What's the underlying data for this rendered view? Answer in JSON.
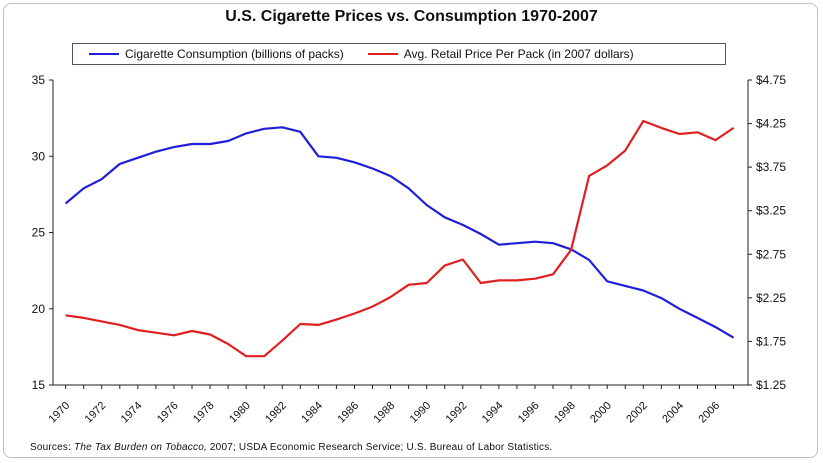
{
  "chart_data": {
    "type": "line",
    "title": "U.S. Cigarette Prices vs. Consumption 1970-2007",
    "x_ticks": [
      "1970",
      "1972",
      "1974",
      "1976",
      "1978",
      "1980",
      "1982",
      "1984",
      "1986",
      "1988",
      "1990",
      "1992",
      "1994",
      "1996",
      "1998",
      "2000",
      "2002",
      "2004",
      "2006"
    ],
    "x": [
      1970,
      1971,
      1972,
      1973,
      1974,
      1975,
      1976,
      1977,
      1978,
      1979,
      1980,
      1981,
      1982,
      1983,
      1984,
      1985,
      1986,
      1987,
      1988,
      1989,
      1990,
      1991,
      1992,
      1993,
      1994,
      1995,
      1996,
      1997,
      1998,
      1999,
      2000,
      2001,
      2002,
      2003,
      2004,
      2005,
      2006,
      2007
    ],
    "y_left_ticks": [
      "15",
      "20",
      "25",
      "30",
      "35"
    ],
    "y_left_lim": [
      15,
      35
    ],
    "y_right_ticks": [
      "$1.25",
      "$1.75",
      "$2.25",
      "$2.75",
      "$3.25",
      "$3.75",
      "$4.25",
      "$4.75"
    ],
    "y_right_lim": [
      1.25,
      4.75
    ],
    "grid": false,
    "legend_position": "top",
    "series": [
      {
        "name": "Cigarette Consumption (billions of packs)",
        "axis": "left",
        "color": "#1f1fd6",
        "values": [
          26.9,
          27.9,
          28.5,
          29.5,
          29.9,
          30.3,
          30.6,
          30.8,
          30.8,
          31.0,
          31.5,
          31.8,
          31.9,
          31.6,
          30.0,
          29.9,
          29.6,
          29.2,
          28.7,
          27.9,
          26.8,
          26.0,
          25.5,
          24.9,
          24.2,
          24.3,
          24.4,
          24.3,
          23.9,
          23.2,
          21.8,
          21.5,
          21.2,
          20.7,
          20.0,
          19.4,
          18.8,
          18.1
        ]
      },
      {
        "name": "Avg. Retail Price Per Pack (in 2007 dollars)",
        "axis": "right",
        "color": "#e02020",
        "values": [
          2.05,
          2.02,
          1.98,
          1.94,
          1.88,
          1.85,
          1.82,
          1.87,
          1.83,
          1.72,
          1.58,
          1.58,
          1.76,
          1.95,
          1.94,
          2.0,
          2.07,
          2.15,
          2.26,
          2.4,
          2.42,
          2.62,
          2.69,
          2.42,
          2.45,
          2.45,
          2.47,
          2.52,
          2.8,
          3.65,
          3.77,
          3.94,
          4.28,
          4.2,
          4.13,
          4.15,
          4.06,
          4.2
        ]
      }
    ]
  },
  "legend": {
    "series1_label": "Cigarette Consumption (billions of packs)",
    "series2_label": "Avg. Retail Price Per Pack (in 2007 dollars)"
  },
  "source": {
    "prefix": "Sources: ",
    "italic": "The Tax Burden on Tobacco,",
    "rest": " 2007; USDA Economic Research Service; U.S. Bureau of Labor Statistics."
  }
}
